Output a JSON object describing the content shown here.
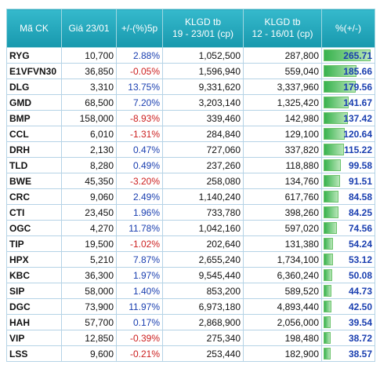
{
  "table": {
    "header": [
      "Mã CK",
      "Giá 23/01",
      "+/-(%)5p",
      [
        "KLGD tb",
        "19 - 23/01 (cp)"
      ],
      [
        "KLGD tb",
        "12 - 16/01 (cp)"
      ],
      "%(+/-)"
    ],
    "rows": [
      [
        "RYG",
        "10,700",
        "2.88%",
        "1,052,500",
        "287,800",
        "265.71"
      ],
      [
        "E1VFVN30",
        "36,850",
        "-0.05%",
        "1,596,940",
        "559,040",
        "185.66"
      ],
      [
        "DLG",
        "3,310",
        "13.75%",
        "9,331,620",
        "3,337,960",
        "179.56"
      ],
      [
        "GMD",
        "68,500",
        "7.20%",
        "3,203,140",
        "1,325,420",
        "141.67"
      ],
      [
        "BMP",
        "158,000",
        "-8.93%",
        "339,460",
        "142,980",
        "137.42"
      ],
      [
        "CCL",
        "6,010",
        "-1.31%",
        "284,840",
        "129,100",
        "120.64"
      ],
      [
        "DRH",
        "2,130",
        "0.47%",
        "727,060",
        "337,820",
        "115.22"
      ],
      [
        "TLD",
        "8,280",
        "0.49%",
        "237,260",
        "118,880",
        "99.58"
      ],
      [
        "BWE",
        "45,350",
        "-3.20%",
        "258,080",
        "134,760",
        "91.51"
      ],
      [
        "CRC",
        "9,060",
        "2.49%",
        "1,140,240",
        "617,760",
        "84.58"
      ],
      [
        "CTI",
        "23,450",
        "1.96%",
        "733,780",
        "398,260",
        "84.25"
      ],
      [
        "OGC",
        "4,270",
        "11.78%",
        "1,042,160",
        "597,020",
        "74.56"
      ],
      [
        "TIP",
        "19,500",
        "-1.02%",
        "202,640",
        "131,380",
        "54.24"
      ],
      [
        "HPX",
        "5,210",
        "7.87%",
        "2,655,240",
        "1,734,100",
        "53.12"
      ],
      [
        "KBC",
        "36,300",
        "1.97%",
        "9,545,440",
        "6,360,240",
        "50.08"
      ],
      [
        "SIP",
        "58,000",
        "1.40%",
        "853,200",
        "589,520",
        "44.73"
      ],
      [
        "DGC",
        "73,900",
        "11.97%",
        "6,973,180",
        "4,893,440",
        "42.50"
      ],
      [
        "HAH",
        "57,700",
        "0.17%",
        "2,868,900",
        "2,056,000",
        "39.54"
      ],
      [
        "VIP",
        "12,850",
        "-0.39%",
        "275,340",
        "198,480",
        "38.72"
      ],
      [
        "LSS",
        "9,600",
        "-0.21%",
        "253,440",
        "182,900",
        "38.57"
      ]
    ]
  }
}
